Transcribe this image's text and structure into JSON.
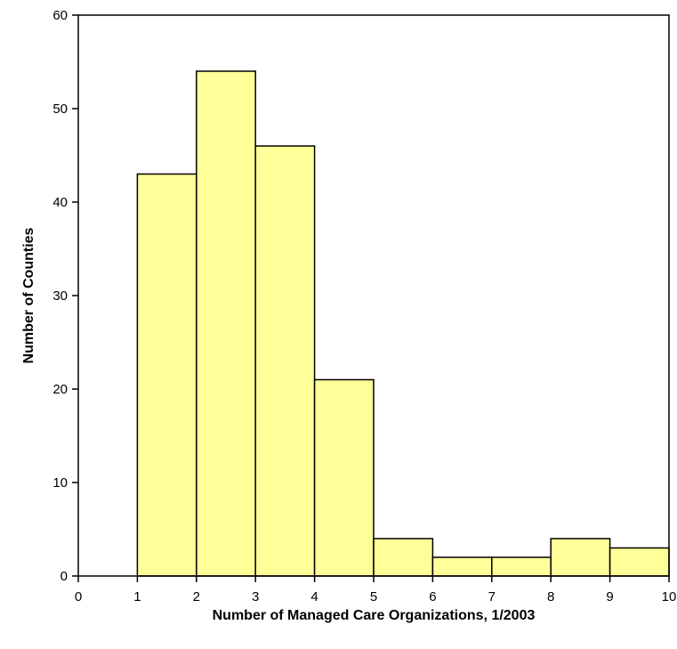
{
  "chart_data": {
    "type": "bar",
    "xlabel": "Number of Managed Care Organizations, 1/2003",
    "ylabel": "Number of Counties",
    "xlim": [
      0,
      10
    ],
    "ylim": [
      0,
      60
    ],
    "x_ticks": [
      "0",
      "1",
      "2",
      "3",
      "4",
      "5",
      "6",
      "7",
      "8",
      "9",
      "10"
    ],
    "y_ticks": [
      "0",
      "10",
      "20",
      "30",
      "40",
      "50",
      "60"
    ],
    "bins": [
      {
        "start": 1,
        "end": 2,
        "value": 43
      },
      {
        "start": 2,
        "end": 3,
        "value": 54
      },
      {
        "start": 3,
        "end": 4,
        "value": 46
      },
      {
        "start": 4,
        "end": 5,
        "value": 21
      },
      {
        "start": 5,
        "end": 6,
        "value": 4
      },
      {
        "start": 6,
        "end": 7,
        "value": 2
      },
      {
        "start": 7,
        "end": 8,
        "value": 2
      },
      {
        "start": 8,
        "end": 9,
        "value": 4
      },
      {
        "start": 9,
        "end": 10,
        "value": 3
      }
    ],
    "bar_color": "#ffff99",
    "grid": false,
    "legend": "none"
  }
}
